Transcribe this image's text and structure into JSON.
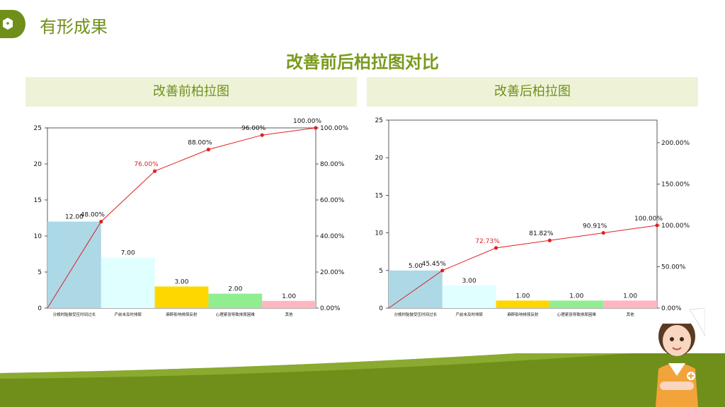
{
  "header": {
    "title": "有形成果",
    "logo_icon": "medical-cross-hexagon-icon"
  },
  "main_title": "改善前后柏拉图对比",
  "colors": {
    "brand": "#7a9a1e",
    "line": "#e02020",
    "bars": [
      "#add8e6",
      "#e0ffff",
      "#ffd700",
      "#90ee90",
      "#ffb6c1"
    ]
  },
  "chart_data": [
    {
      "type": "bar",
      "title": "改善前柏拉图",
      "categories": [
        "分娩时胎肢受压时间过长",
        "产前未及时排尿",
        "麻醉影响排尿反射",
        "心理紧张导致排尿困难",
        "其他"
      ],
      "values": [
        12,
        7,
        3,
        2,
        1
      ],
      "value_labels": [
        "12.00",
        "7.00",
        "3.00",
        "2.00",
        "1.00"
      ],
      "cumulative": [
        0,
        48,
        76,
        88,
        96,
        100
      ],
      "cumulative_labels": [
        "48.00%",
        "76.00%",
        "88.00%",
        "96.00%",
        "100.00%"
      ],
      "ylim": [
        0,
        25
      ],
      "yticks": [
        "0",
        "5",
        "10",
        "15",
        "20",
        "25"
      ],
      "y2lim": [
        0,
        100
      ],
      "y2ticks": [
        "0.00%",
        "20.00%",
        "40.00%",
        "60.00%",
        "80.00%",
        "100.00%"
      ],
      "highlight_index": 1
    },
    {
      "type": "bar",
      "title": "改善后柏拉图",
      "categories": [
        "分娩时胎肢受压时间过长",
        "产前未及时排尿",
        "麻醉影响排尿反射",
        "心理紧张导致排尿困难",
        "其他"
      ],
      "values": [
        5,
        3,
        1,
        1,
        1
      ],
      "value_labels": [
        "5.00",
        "3.00",
        "1.00",
        "1.00",
        "1.00"
      ],
      "cumulative": [
        0,
        45.45,
        72.73,
        81.82,
        90.91,
        100
      ],
      "cumulative_labels": [
        "45.45%",
        "72.73%",
        "81.82%",
        "90.91%",
        "100.00%"
      ],
      "ylim": [
        0,
        25
      ],
      "yticks": [
        "0",
        "5",
        "10",
        "15",
        "20",
        "25"
      ],
      "y2lim": [
        0,
        227.27
      ],
      "y2ticks": [
        "0.00%",
        "50.00%",
        "100.00%",
        "150.00%",
        "200.00%"
      ],
      "y2tick_values": [
        0,
        50,
        100,
        150,
        200
      ],
      "highlight_index": 1
    }
  ]
}
